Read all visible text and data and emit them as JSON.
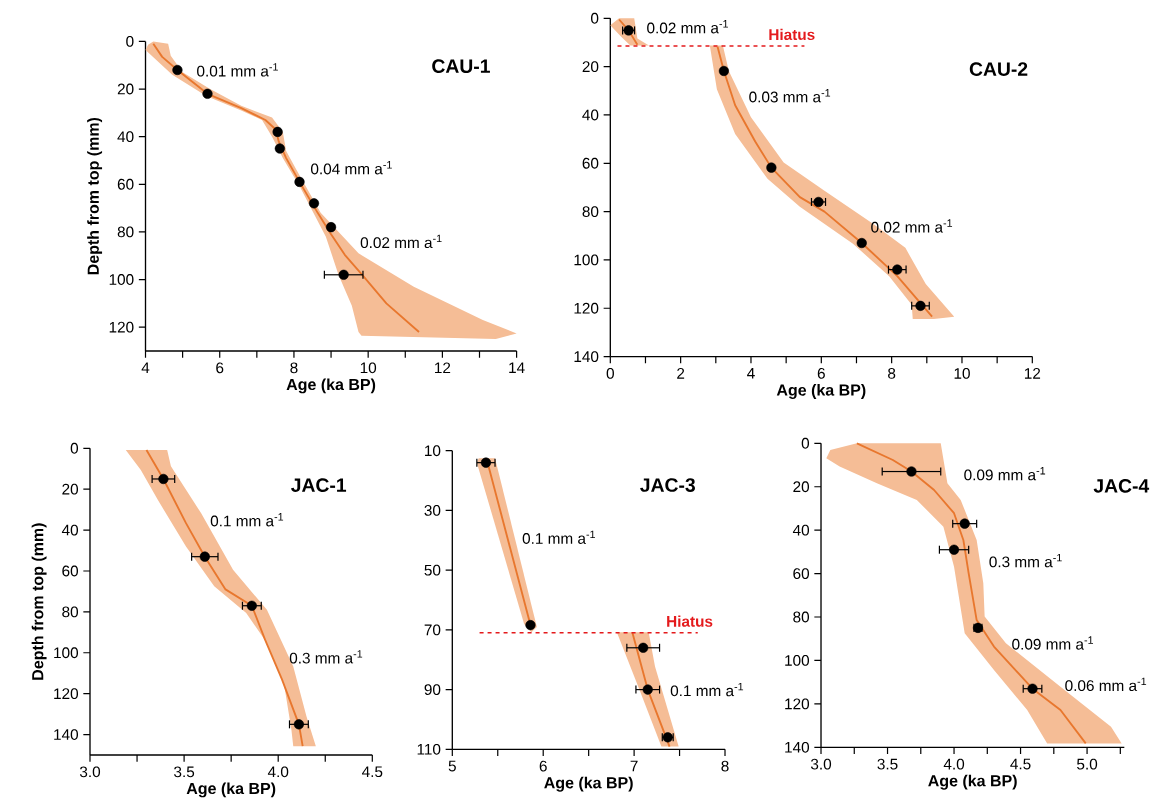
{
  "chart_data": [
    {
      "type": "scatter",
      "title": "CAU-1",
      "xlabel": "Age (ka BP)",
      "ylabel": "Depth from top (mm)",
      "xlim": [
        4,
        14
      ],
      "ylim": [
        130,
        0
      ],
      "xticks": [
        4,
        {
          "value": 5,
          "label": null
        },
        6,
        {
          "value": 7,
          "label": null
        },
        8,
        {
          "value": 9,
          "label": null
        },
        10,
        {
          "value": 11,
          "label": null
        },
        12,
        {
          "value": 13,
          "label": null
        },
        14
      ],
      "yticks": [
        0,
        20,
        40,
        60,
        80,
        100,
        120
      ],
      "series": [
        {
          "type": "area",
          "color": "#f5bd96",
          "x": [
            4.21,
            4.61,
            4.68,
            5.0,
            5.74,
            6.58,
            7.41,
            7.7,
            7.79,
            8.07,
            8.72,
            9.74,
            11.23,
            13.09,
            14.0,
            13.44,
            9.82,
            9.74,
            9.56,
            9.2,
            8.86,
            8.16,
            7.7,
            7.41,
            7.14,
            6.58,
            5.65,
            4.72,
            4.0,
            4.07
          ],
          "values": [
            0,
            1,
            6,
            13,
            20,
            27,
            32,
            38,
            46,
            54,
            72,
            89,
            103,
            117,
            122.6,
            125,
            123.6,
            122,
            111,
            98,
            82,
            61,
            49,
            40,
            33,
            29,
            23,
            14,
            3.6,
            1.4
          ]
        },
        {
          "type": "line",
          "color": "#e8772e",
          "x": [
            4.21,
            4.45,
            4.86,
            5.67,
            6.58,
            7.23,
            7.51,
            7.59,
            7.79,
            8.15,
            8.64,
            9.0,
            9.37,
            9.84,
            10.49,
            11.37
          ],
          "values": [
            1,
            6.5,
            12,
            22,
            28,
            33,
            37,
            42,
            49,
            59,
            72,
            81,
            89.6,
            98,
            110,
            122
          ]
        },
        {
          "marker": "circle",
          "color": "#000000",
          "x": [
            4.86,
            5.67,
            7.56,
            7.62,
            8.15,
            8.54,
            9.0,
            9.34
          ],
          "values": [
            12,
            22,
            38,
            45,
            59,
            68,
            78,
            98
          ],
          "xerrors": [
            null,
            null,
            null,
            null,
            null,
            null,
            null,
            0.52
          ]
        }
      ],
      "annotations": [
        "0.01 mm a$^{-1}$",
        "0.04 mm a$^{-1}$",
        "0.02 mm a$^{-1}$"
      ]
    },
    {
      "type": "scatter",
      "title": "CAU-2",
      "xlabel": "Age (ka BP)",
      "xlim": [
        0,
        12
      ],
      "ylim": [
        140,
        0
      ],
      "xticks": [
        0,
        {
          "value": 1,
          "label": null
        },
        2,
        {
          "value": 3,
          "label": null
        },
        4,
        {
          "value": 5,
          "label": null
        },
        6,
        {
          "value": 7,
          "label": null
        },
        8,
        {
          "value": 9,
          "label": null
        },
        10,
        {
          "value": 11,
          "label": null
        },
        12
      ],
      "yticks": [
        0,
        20,
        40,
        60,
        80,
        100,
        120,
        140
      ],
      "series": [
        {
          "type": "area",
          "color": "#f5bd96",
          "x": [
            0,
            0.25,
            0.68,
            0.77,
            1.1,
            0.57,
            0.31
          ],
          "values": [
            2.9,
            0,
            0,
            8.4,
            11.3,
            11.3,
            7.6
          ]
        },
        {
          "type": "area",
          "color": "#f5bd96",
          "x": [
            2.83,
            3.2,
            3.37,
            4.0,
            4.93,
            6.09,
            7.47,
            8.39,
            8.97,
            9.78,
            9.2,
            8.6,
            8.57,
            7.93,
            6.9,
            5.39,
            4.47,
            3.55,
            3.03
          ],
          "values": [
            11.3,
            11.3,
            21.8,
            41,
            59.7,
            71.4,
            85,
            95,
            110,
            123.5,
            124.4,
            124.4,
            118.5,
            106.7,
            93.3,
            78,
            66.4,
            47.9,
            29.4
          ]
        },
        {
          "type": "line",
          "color": "#e8772e",
          "x": [
            0.25,
            0.52,
            0.77,
            null,
            3.05,
            3.23,
            3.55,
            4.12,
            4.58,
            5.39,
            6.09,
            7.15,
            8.16,
            9.15
          ],
          "values": [
            0.5,
            5,
            10.9,
            null,
            11.8,
            21.8,
            36,
            51,
            61.8,
            74,
            80,
            93,
            106.7,
            123.5
          ]
        },
        {
          "marker": "circle",
          "color": "#000000",
          "x": [
            0.52,
            3.23,
            4.58,
            5.92,
            7.15,
            8.16,
            8.82
          ],
          "values": [
            5,
            21.8,
            61.8,
            76,
            93,
            104,
            119
          ],
          "xerrors": [
            0.17,
            null,
            null,
            0.2,
            null,
            0.25,
            0.25
          ]
        }
      ],
      "ref_lines": [
        {
          "axis": "y",
          "value": 11.5,
          "label": "Hiatus",
          "color": "#e41a1c",
          "line_style": "dashed"
        }
      ],
      "annotations": [
        "0.02 mm a$^{-1}$",
        "0.03 mm a$^{-1}$",
        "0.02 mm a$^{-1}$"
      ]
    },
    {
      "type": "scatter",
      "title": "JAC-1",
      "xlabel": "Age (ka BP)",
      "ylabel": "Depth from top (mm)",
      "xlim": [
        3,
        4.5
      ],
      "ylim": [
        150,
        0
      ],
      "xticks": [
        {
          "value": 3,
          "label": "3.0"
        },
        {
          "value": 3.25,
          "label": null
        },
        {
          "value": 3.5,
          "label": "3.5"
        },
        {
          "value": 3.75,
          "label": null
        },
        {
          "value": 4,
          "label": "4.0"
        },
        {
          "value": 4.25,
          "label": null
        },
        {
          "value": 4.5,
          "label": "4.5"
        }
      ],
      "yticks": [
        0,
        20,
        40,
        60,
        80,
        100,
        120,
        140
      ],
      "series": [
        {
          "type": "area",
          "color": "#f5bd96",
          "x": [
            3.19,
            3.41,
            3.43,
            3.59,
            3.76,
            3.94,
            4.08,
            4.15,
            4.2,
            4.08,
            4.07,
            4.03,
            3.94,
            3.83,
            3.66,
            3.51,
            3.36,
            3.27
          ],
          "values": [
            0.8,
            0.8,
            8.8,
            31.7,
            59.4,
            79,
            106.7,
            131,
            145.7,
            145.7,
            137.5,
            114.8,
            95.2,
            80.6,
            67.5,
            48,
            25.2,
            10.6
          ]
        },
        {
          "type": "line",
          "color": "#e8772e",
          "x": [
            3.3,
            3.39,
            3.51,
            3.61,
            3.72,
            3.86,
            3.93,
            4.02,
            4.11,
            4.13
          ],
          "values": [
            0.8,
            15,
            36.6,
            53,
            69,
            77,
            93.6,
            113,
            135,
            145.7
          ]
        },
        {
          "marker": "circle",
          "color": "#000000",
          "x": [
            3.39,
            3.61,
            3.86,
            4.11
          ],
          "values": [
            15,
            53,
            77,
            135
          ],
          "xerrors": [
            0.06,
            0.07,
            0.05,
            0.05
          ]
        }
      ],
      "annotations": [
        "0.1 mm a$^{-1}$",
        "0.3 mm a$^{-1}$"
      ]
    },
    {
      "type": "scatter",
      "title": "JAC-3",
      "xlabel": "Age (ka BP)",
      "xlim": [
        5,
        8
      ],
      "ylim": [
        110,
        10
      ],
      "xticks": [
        5,
        {
          "value": 5.5,
          "label": null
        },
        6,
        {
          "value": 6.5,
          "label": null
        },
        7,
        {
          "value": 7.5,
          "label": null
        },
        8
      ],
      "yticks": [
        10,
        30,
        50,
        70,
        90,
        110
      ],
      "series": [
        {
          "type": "area",
          "color": "#f5bd96",
          "x": [
            5.27,
            5.29,
            5.47,
            5.93,
            5.87,
            5.79
          ],
          "values": [
            14,
            12.5,
            12.5,
            69,
            70.8,
            68
          ]
        },
        {
          "type": "area",
          "color": "#f5bd96",
          "x": [
            6.81,
            7.16,
            7.23,
            7.49,
            7.3,
            7.06
          ],
          "values": [
            70.8,
            70.8,
            82.3,
            109.1,
            109.1,
            90.1
          ]
        },
        {
          "type": "line",
          "color": "#e8772e",
          "x": [
            5.39,
            5.86,
            null,
            6.98,
            7.15,
            7.39
          ],
          "values": [
            14.2,
            68.4,
            null,
            70.8,
            90,
            109.1
          ]
        },
        {
          "marker": "circle",
          "color": "#000000",
          "x": [
            5.37,
            5.86,
            7.1,
            7.15,
            7.37
          ],
          "values": [
            14,
            68.4,
            76,
            90,
            106
          ],
          "xerrors": [
            0.1,
            null,
            0.18,
            0.13,
            0.06
          ]
        }
      ],
      "ref_lines": [
        {
          "axis": "y",
          "value": 71,
          "label": "Hiatus",
          "color": "#e41a1c",
          "line_style": "dashed"
        }
      ],
      "annotations": [
        "0.1 mm a$^{-1}$",
        "0.1 mm a$^{-1}$"
      ]
    },
    {
      "type": "scatter",
      "title": "JAC-4",
      "xlabel": "Age (ka BP)",
      "xlim": [
        3,
        5.28
      ],
      "ylim": [
        140,
        0
      ],
      "xticks": [
        {
          "value": 3,
          "label": "3.0"
        },
        {
          "value": 3.25,
          "label": null
        },
        {
          "value": 3.5,
          "label": "3.5"
        },
        {
          "value": 3.75,
          "label": null
        },
        {
          "value": 4,
          "label": "4.0"
        },
        {
          "value": 4.25,
          "label": null
        },
        {
          "value": 4.5,
          "label": "4.5"
        },
        {
          "value": 4.75,
          "label": null
        },
        {
          "value": 5,
          "label": "5.0"
        },
        {
          "value": 5.25,
          "label": null
        }
      ],
      "yticks": [
        0,
        20,
        40,
        60,
        80,
        100,
        120,
        140
      ],
      "series": [
        {
          "type": "area",
          "color": "#f5bd96",
          "x": [
            3.27,
            3.9,
            3.95,
            4.05,
            4.17,
            4.22,
            4.23,
            4.39,
            4.8,
            5.18,
            5.26,
            4.7,
            4.55,
            4.3,
            4.08,
            4.0,
            3.92,
            3.72,
            3.42,
            3.14,
            3.04,
            3.07
          ],
          "values": [
            0,
            0,
            18.4,
            26.1,
            44.5,
            64.5,
            79.8,
            92.1,
            112.1,
            130.5,
            138.2,
            138.2,
            122.8,
            104.4,
            87.5,
            56.8,
            38.4,
            26.1,
            18.4,
            10.7,
            6.9,
            3.1
          ]
        },
        {
          "type": "line",
          "color": "#e8772e",
          "x": [
            3.27,
            3.54,
            3.68,
            3.85,
            4.0,
            4.07,
            4.11,
            4.17,
            4.3,
            4.59,
            4.8,
            4.99
          ],
          "values": [
            0,
            7.7,
            13,
            21.5,
            32.2,
            44.5,
            59.9,
            81.4,
            93.6,
            113,
            122.8,
            138.2
          ]
        },
        {
          "marker": "circle",
          "color": "#000000",
          "x": [
            3.68,
            4.08,
            4.0,
            4.18,
            4.59
          ],
          "values": [
            13,
            37,
            49,
            85,
            113
          ],
          "xerrors": [
            0.22,
            0.09,
            0.11,
            0.03,
            0.07
          ]
        }
      ],
      "annotations": [
        "0.09 mm a$^{-1}$",
        "0.3 mm a$^{-1}$",
        "0.09 mm a$^{-1}$",
        "0.06 mm a$^{-1}$"
      ]
    }
  ]
}
